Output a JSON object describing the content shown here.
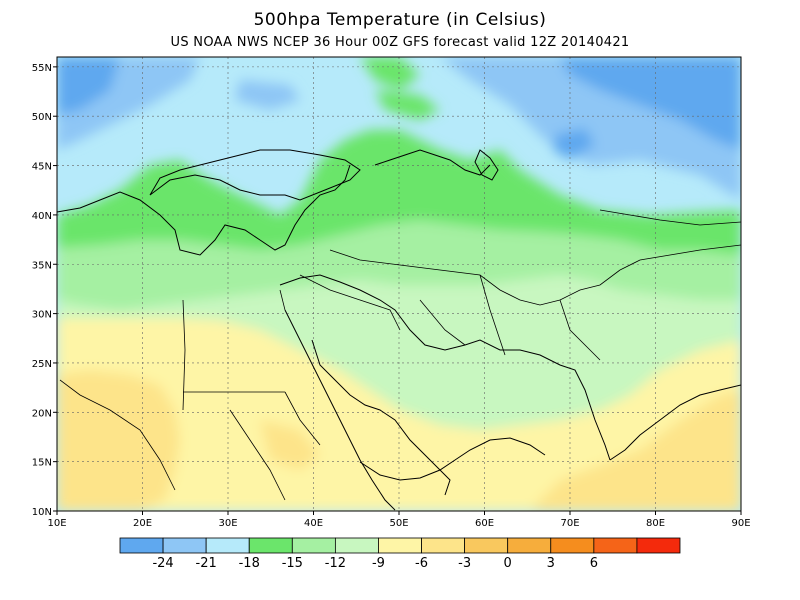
{
  "header": {
    "title": "500hpa  Temperature (in Celsius)",
    "subtitle": "US NOAA NWS NCEP 36 Hour 00Z GFS forecast valid 12Z 20140421"
  },
  "map": {
    "lon_ticks": [
      "10E",
      "20E",
      "30E",
      "40E",
      "50E",
      "60E",
      "70E",
      "80E",
      "90E"
    ],
    "lat_ticks": [
      "10N",
      "15N",
      "20N",
      "25N",
      "30N",
      "35N",
      "40N",
      "45N",
      "50N",
      "55N"
    ],
    "lon_range": [
      10,
      90
    ],
    "lat_range": [
      10,
      56
    ]
  },
  "colorbar": {
    "colors": [
      "#5fa8ef",
      "#8ec6f5",
      "#b6eafa",
      "#6be56b",
      "#a5f0a2",
      "#c8f7c0",
      "#fef5a6",
      "#fde48a",
      "#f9c85e",
      "#f6ad3c",
      "#f58d1e",
      "#f56418",
      "#f42a0c"
    ],
    "labels": [
      "-24",
      "-21",
      "-18",
      "-15",
      "-12",
      "-9",
      "-6",
      "-3",
      "0",
      "3",
      "6"
    ]
  },
  "zones": {
    "colors": {
      "dark_blue": "#5fa8ef",
      "blue": "#8ec6f5",
      "light_blue": "#b6eafa",
      "green": "#6be56b",
      "light_green": "#a5f0a2",
      "pale_green": "#c8f7c0",
      "pale_yellow": "#fef5a6",
      "yellow": "#fde48a"
    }
  }
}
